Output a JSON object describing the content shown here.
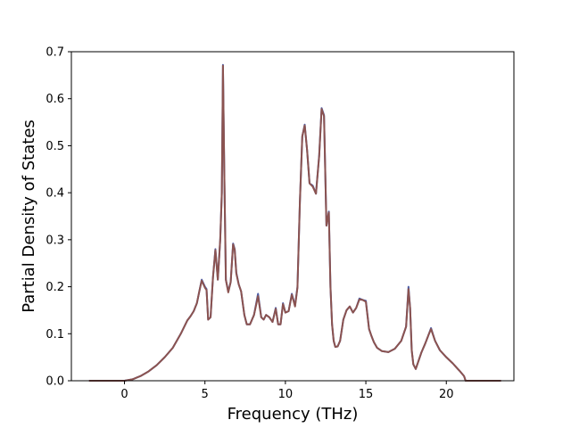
{
  "chart_data": {
    "type": "line",
    "title": "",
    "xlabel": "Frequency (THz)",
    "ylabel": "Partial Density of States",
    "xlim": [
      -3.3,
      24.2
    ],
    "ylim": [
      0.0,
      0.7
    ],
    "xticks": [
      0,
      5,
      10,
      15,
      20
    ],
    "yticks": [
      0.0,
      0.1,
      0.2,
      0.3,
      0.4,
      0.5,
      0.6,
      0.7
    ],
    "xtick_labels": [
      "0",
      "5",
      "10",
      "15",
      "20"
    ],
    "ytick_labels": [
      "0.0",
      "0.1",
      "0.2",
      "0.3",
      "0.4",
      "0.5",
      "0.6",
      "0.7"
    ],
    "grid": false,
    "legend": "none",
    "series": [
      {
        "color": "#4f5fa8",
        "x": [
          -2.2,
          0.0,
          0.5,
          1.0,
          1.5,
          2.0,
          2.5,
          3.0,
          3.5,
          3.9,
          4.1,
          4.3,
          4.5,
          4.65,
          4.8,
          5.0,
          5.1,
          5.2,
          5.35,
          5.5,
          5.65,
          5.8,
          5.95,
          6.05,
          6.12,
          6.2,
          6.3,
          6.45,
          6.6,
          6.75,
          6.85,
          6.95,
          7.1,
          7.25,
          7.45,
          7.6,
          7.8,
          8.05,
          8.3,
          8.5,
          8.65,
          8.8,
          9.0,
          9.2,
          9.4,
          9.55,
          9.7,
          9.85,
          10.0,
          10.2,
          10.4,
          10.6,
          10.75,
          10.9,
          11.05,
          11.2,
          11.35,
          11.5,
          11.7,
          11.9,
          12.1,
          12.25,
          12.4,
          12.55,
          12.7,
          12.8,
          12.9,
          13.0,
          13.1,
          13.25,
          13.4,
          13.6,
          13.8,
          14.0,
          14.2,
          14.4,
          14.6,
          14.8,
          15.0,
          15.2,
          15.35,
          15.5,
          15.7,
          16.0,
          16.4,
          16.8,
          17.2,
          17.5,
          17.65,
          17.75,
          17.85,
          17.95,
          18.1,
          18.25,
          18.45,
          18.7,
          18.9,
          19.05,
          19.3,
          19.6,
          20.0,
          20.4,
          20.8,
          21.1,
          21.2,
          21.3,
          21.6,
          22.5,
          23.4
        ],
        "y": [
          0.0,
          0.0,
          0.003,
          0.01,
          0.02,
          0.033,
          0.05,
          0.07,
          0.1,
          0.128,
          0.137,
          0.148,
          0.165,
          0.19,
          0.215,
          0.2,
          0.195,
          0.13,
          0.135,
          0.22,
          0.28,
          0.215,
          0.3,
          0.4,
          0.672,
          0.45,
          0.215,
          0.19,
          0.21,
          0.292,
          0.28,
          0.23,
          0.205,
          0.19,
          0.14,
          0.12,
          0.12,
          0.14,
          0.185,
          0.135,
          0.13,
          0.14,
          0.135,
          0.125,
          0.155,
          0.12,
          0.12,
          0.165,
          0.145,
          0.148,
          0.185,
          0.16,
          0.2,
          0.38,
          0.52,
          0.545,
          0.49,
          0.42,
          0.415,
          0.398,
          0.48,
          0.58,
          0.565,
          0.33,
          0.36,
          0.2,
          0.12,
          0.085,
          0.072,
          0.073,
          0.085,
          0.13,
          0.15,
          0.158,
          0.145,
          0.155,
          0.175,
          0.172,
          0.17,
          0.11,
          0.095,
          0.082,
          0.07,
          0.063,
          0.061,
          0.068,
          0.085,
          0.115,
          0.2,
          0.155,
          0.065,
          0.035,
          0.025,
          0.04,
          0.06,
          0.08,
          0.098,
          0.112,
          0.085,
          0.065,
          0.05,
          0.037,
          0.022,
          0.01,
          0.0,
          0.0,
          0.0,
          0.0,
          0.0
        ]
      },
      {
        "color": "#8b5350",
        "x": [
          -2.2,
          0.0,
          0.5,
          1.0,
          1.5,
          2.0,
          2.5,
          3.0,
          3.5,
          3.9,
          4.1,
          4.3,
          4.5,
          4.65,
          4.8,
          5.0,
          5.1,
          5.2,
          5.35,
          5.5,
          5.65,
          5.8,
          5.95,
          6.05,
          6.12,
          6.2,
          6.3,
          6.45,
          6.6,
          6.75,
          6.85,
          6.95,
          7.1,
          7.25,
          7.45,
          7.6,
          7.8,
          8.05,
          8.3,
          8.5,
          8.65,
          8.8,
          9.0,
          9.2,
          9.4,
          9.55,
          9.7,
          9.85,
          10.0,
          10.2,
          10.4,
          10.6,
          10.75,
          10.9,
          11.05,
          11.2,
          11.35,
          11.5,
          11.7,
          11.9,
          12.1,
          12.25,
          12.4,
          12.55,
          12.7,
          12.8,
          12.9,
          13.0,
          13.1,
          13.25,
          13.4,
          13.6,
          13.8,
          14.0,
          14.2,
          14.4,
          14.6,
          14.8,
          15.0,
          15.2,
          15.35,
          15.5,
          15.7,
          16.0,
          16.4,
          16.8,
          17.2,
          17.5,
          17.65,
          17.75,
          17.85,
          17.95,
          18.1,
          18.25,
          18.45,
          18.7,
          18.9,
          19.05,
          19.3,
          19.6,
          20.0,
          20.4,
          20.8,
          21.1,
          21.2,
          21.3,
          21.6,
          22.5,
          23.4
        ],
        "y": [
          0.0,
          0.0,
          0.003,
          0.01,
          0.02,
          0.033,
          0.05,
          0.07,
          0.1,
          0.128,
          0.137,
          0.148,
          0.165,
          0.19,
          0.213,
          0.198,
          0.193,
          0.13,
          0.135,
          0.22,
          0.278,
          0.215,
          0.3,
          0.4,
          0.67,
          0.45,
          0.215,
          0.188,
          0.21,
          0.29,
          0.278,
          0.228,
          0.205,
          0.19,
          0.14,
          0.12,
          0.12,
          0.14,
          0.18,
          0.135,
          0.13,
          0.14,
          0.135,
          0.125,
          0.153,
          0.12,
          0.12,
          0.163,
          0.145,
          0.148,
          0.183,
          0.158,
          0.198,
          0.38,
          0.52,
          0.543,
          0.49,
          0.42,
          0.413,
          0.398,
          0.478,
          0.578,
          0.563,
          0.33,
          0.358,
          0.2,
          0.12,
          0.085,
          0.072,
          0.073,
          0.085,
          0.13,
          0.15,
          0.158,
          0.145,
          0.155,
          0.173,
          0.172,
          0.168,
          0.11,
          0.095,
          0.082,
          0.07,
          0.063,
          0.061,
          0.068,
          0.085,
          0.115,
          0.195,
          0.155,
          0.065,
          0.035,
          0.025,
          0.04,
          0.06,
          0.08,
          0.098,
          0.11,
          0.085,
          0.065,
          0.05,
          0.037,
          0.022,
          0.01,
          0.0,
          0.0,
          0.0,
          0.0,
          0.0
        ]
      }
    ]
  }
}
